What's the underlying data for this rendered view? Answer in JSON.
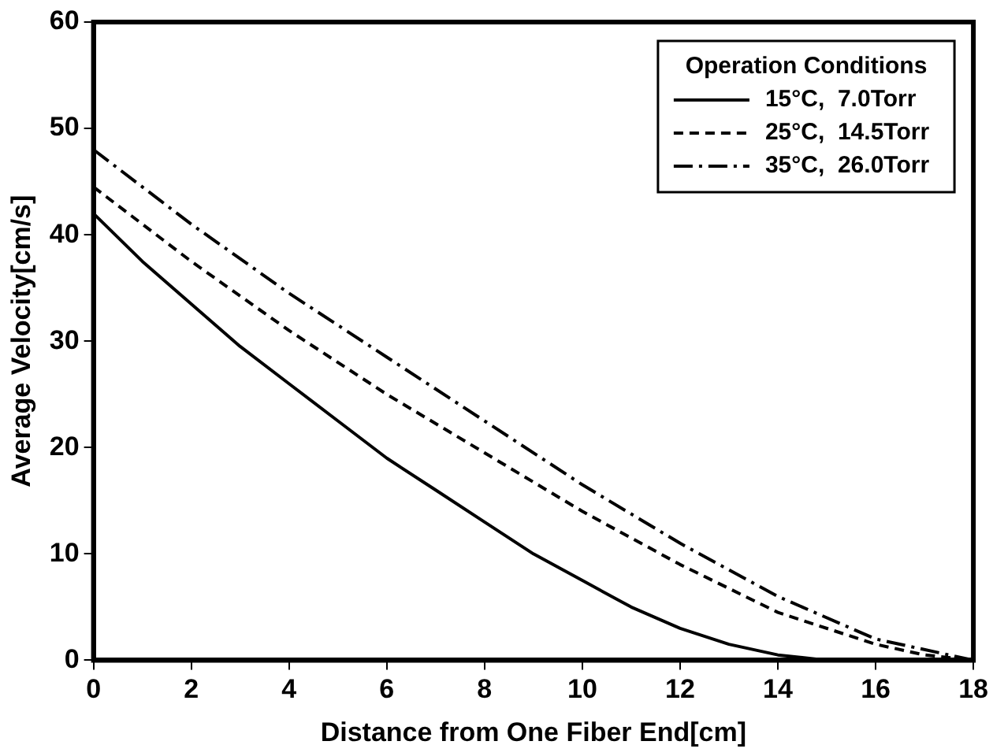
{
  "chart_data": {
    "type": "line",
    "xlabel": "Distance from One Fiber End[cm]",
    "ylabel": "Average Velocity[cm/s]",
    "legend_title": "Operation Conditions",
    "legend": "top right",
    "grid": false,
    "marker": "none",
    "xlim": [
      0,
      18
    ],
    "xticks": [
      0,
      2,
      4,
      6,
      8,
      10,
      12,
      14,
      16,
      18
    ],
    "ylim": [
      0,
      60
    ],
    "yticks": [
      0,
      10,
      20,
      30,
      40,
      50,
      60
    ],
    "series": [
      {
        "name": "15°C,  7.0Torr",
        "color": "#000000",
        "line_style": "solid",
        "x": [
          0,
          1,
          2,
          3,
          4,
          5,
          6,
          7,
          8,
          9,
          10,
          11,
          12,
          13,
          14,
          15,
          16
        ],
        "values": [
          42,
          37.5,
          33.5,
          29.5,
          26,
          22.5,
          19,
          16,
          13,
          10,
          7.5,
          5,
          3,
          1.5,
          0.5,
          0,
          0
        ]
      },
      {
        "name": "25°C,  14.5Torr",
        "color": "#000000",
        "line_style": "dashed",
        "x": [
          0,
          2,
          4,
          6,
          8,
          10,
          12,
          14,
          16,
          17,
          18
        ],
        "values": [
          44.5,
          37.5,
          31,
          25,
          19.5,
          14,
          9,
          4.5,
          1.5,
          0.5,
          0
        ]
      },
      {
        "name": "35°C,  26.0Torr",
        "color": "#000000",
        "line_style": "dashdot",
        "x": [
          0,
          2,
          4,
          6,
          8,
          10,
          12,
          14,
          16,
          18
        ],
        "values": [
          48,
          41,
          34.5,
          28.5,
          22.5,
          16.5,
          11,
          6,
          2,
          0
        ]
      }
    ]
  }
}
